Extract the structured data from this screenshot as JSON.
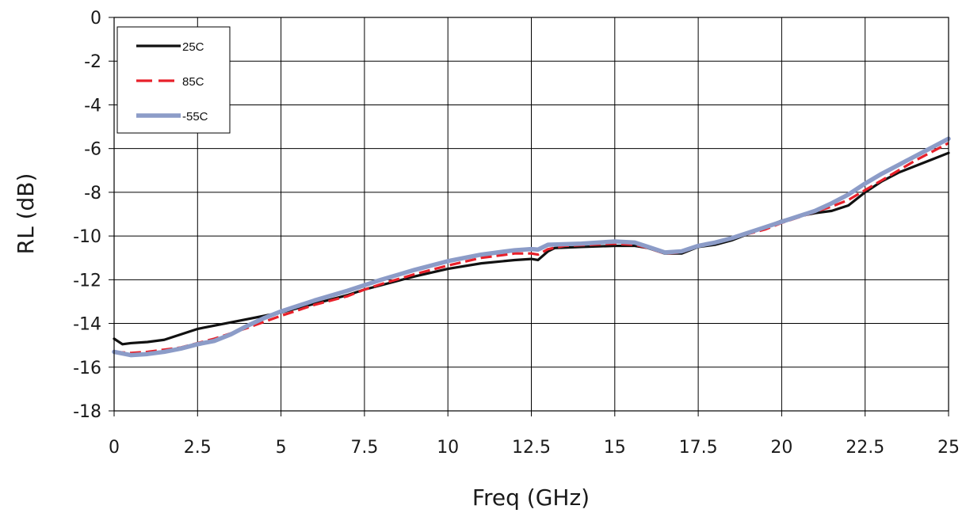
{
  "chart_data": {
    "type": "line",
    "title": "",
    "xlabel": "Freq (GHz)",
    "ylabel": "RL (dB)",
    "xlim": [
      0,
      25
    ],
    "ylim": [
      -18,
      0
    ],
    "x_ticks": [
      0,
      2.5,
      5,
      7.5,
      10,
      12.5,
      15,
      17.5,
      20,
      22.5,
      25
    ],
    "x_tick_labels": [
      "0",
      "2.5",
      "5",
      "7.5",
      "10",
      "12.5",
      "15",
      "17.5",
      "20",
      "22.5",
      "25"
    ],
    "y_ticks": [
      0,
      -2,
      -4,
      -6,
      -8,
      -10,
      -12,
      -14,
      -16,
      -18
    ],
    "y_tick_labels": [
      "0",
      "-2",
      "-4",
      "-6",
      "-8",
      "-10",
      "-12",
      "-14",
      "-16",
      "-18"
    ],
    "grid": true,
    "legend_position": "top-left",
    "series": [
      {
        "name": "25C",
        "color": "#111111",
        "style": "solid",
        "points": [
          [
            0,
            -14.7
          ],
          [
            0.25,
            -14.95
          ],
          [
            0.5,
            -14.9
          ],
          [
            1,
            -14.85
          ],
          [
            1.5,
            -14.75
          ],
          [
            2,
            -14.5
          ],
          [
            2.5,
            -14.25
          ],
          [
            3,
            -14.1
          ],
          [
            4,
            -13.8
          ],
          [
            5,
            -13.5
          ],
          [
            6,
            -13.1
          ],
          [
            7,
            -12.7
          ],
          [
            7.5,
            -12.45
          ],
          [
            8,
            -12.25
          ],
          [
            9,
            -11.85
          ],
          [
            10,
            -11.5
          ],
          [
            11,
            -11.25
          ],
          [
            12,
            -11.1
          ],
          [
            12.5,
            -11.05
          ],
          [
            12.7,
            -11.1
          ],
          [
            13,
            -10.7
          ],
          [
            13.2,
            -10.55
          ],
          [
            14,
            -10.5
          ],
          [
            15,
            -10.45
          ],
          [
            15.6,
            -10.45
          ],
          [
            16,
            -10.55
          ],
          [
            16.5,
            -10.8
          ],
          [
            17,
            -10.8
          ],
          [
            17.5,
            -10.5
          ],
          [
            18,
            -10.4
          ],
          [
            18.5,
            -10.2
          ],
          [
            19,
            -9.9
          ],
          [
            19.5,
            -9.6
          ],
          [
            20,
            -9.3
          ],
          [
            20.5,
            -9.1
          ],
          [
            21,
            -8.95
          ],
          [
            21.5,
            -8.85
          ],
          [
            22,
            -8.6
          ],
          [
            22.5,
            -8.0
          ],
          [
            23,
            -7.5
          ],
          [
            23.5,
            -7.1
          ],
          [
            24,
            -6.8
          ],
          [
            24.5,
            -6.5
          ],
          [
            25,
            -6.2
          ]
        ]
      },
      {
        "name": "85C",
        "color": "#e8202a",
        "style": "dashed",
        "points": [
          [
            0,
            -15.3
          ],
          [
            0.5,
            -15.35
          ],
          [
            1,
            -15.3
          ],
          [
            1.5,
            -15.2
          ],
          [
            2,
            -15.1
          ],
          [
            2.5,
            -14.9
          ],
          [
            3,
            -14.7
          ],
          [
            4,
            -14.2
          ],
          [
            5,
            -13.65
          ],
          [
            6,
            -13.15
          ],
          [
            7,
            -12.75
          ],
          [
            7.5,
            -12.45
          ],
          [
            8,
            -12.2
          ],
          [
            9,
            -11.75
          ],
          [
            10,
            -11.35
          ],
          [
            11,
            -11.0
          ],
          [
            12,
            -10.8
          ],
          [
            12.5,
            -10.8
          ],
          [
            12.7,
            -10.85
          ],
          [
            13,
            -10.6
          ],
          [
            13.5,
            -10.45
          ],
          [
            14,
            -10.42
          ],
          [
            15,
            -10.35
          ],
          [
            15.6,
            -10.4
          ],
          [
            16,
            -10.55
          ],
          [
            16.5,
            -10.8
          ],
          [
            17,
            -10.75
          ],
          [
            17.5,
            -10.45
          ],
          [
            18,
            -10.3
          ],
          [
            18.5,
            -10.1
          ],
          [
            19,
            -9.9
          ],
          [
            19.5,
            -9.7
          ],
          [
            20,
            -9.4
          ],
          [
            20.5,
            -9.15
          ],
          [
            21,
            -8.9
          ],
          [
            21.5,
            -8.65
          ],
          [
            22,
            -8.35
          ],
          [
            22.5,
            -7.9
          ],
          [
            23,
            -7.45
          ],
          [
            23.5,
            -7.0
          ],
          [
            24,
            -6.55
          ],
          [
            24.5,
            -6.15
          ],
          [
            25,
            -5.75
          ]
        ]
      },
      {
        "name": "-55C",
        "color": "#8c9cc8",
        "style": "solid",
        "points": [
          [
            0,
            -15.3
          ],
          [
            0.5,
            -15.45
          ],
          [
            1,
            -15.4
          ],
          [
            1.5,
            -15.3
          ],
          [
            2,
            -15.15
          ],
          [
            2.5,
            -14.95
          ],
          [
            3,
            -14.8
          ],
          [
            3.5,
            -14.5
          ],
          [
            4,
            -14.1
          ],
          [
            4.5,
            -13.75
          ],
          [
            5,
            -13.45
          ],
          [
            6,
            -12.95
          ],
          [
            7,
            -12.5
          ],
          [
            7.5,
            -12.25
          ],
          [
            8,
            -12.0
          ],
          [
            9,
            -11.55
          ],
          [
            10,
            -11.15
          ],
          [
            11,
            -10.85
          ],
          [
            12,
            -10.65
          ],
          [
            12.5,
            -10.6
          ],
          [
            12.7,
            -10.62
          ],
          [
            13,
            -10.4
          ],
          [
            14,
            -10.35
          ],
          [
            15,
            -10.25
          ],
          [
            15.6,
            -10.3
          ],
          [
            16,
            -10.5
          ],
          [
            16.5,
            -10.75
          ],
          [
            17,
            -10.7
          ],
          [
            17.5,
            -10.45
          ],
          [
            18,
            -10.3
          ],
          [
            18.5,
            -10.1
          ],
          [
            19,
            -9.85
          ],
          [
            19.5,
            -9.6
          ],
          [
            20,
            -9.35
          ],
          [
            20.5,
            -9.1
          ],
          [
            21,
            -8.85
          ],
          [
            21.5,
            -8.5
          ],
          [
            22,
            -8.1
          ],
          [
            22.5,
            -7.6
          ],
          [
            23,
            -7.15
          ],
          [
            23.5,
            -6.75
          ],
          [
            24,
            -6.35
          ],
          [
            24.5,
            -5.95
          ],
          [
            25,
            -5.55
          ]
        ]
      }
    ]
  }
}
